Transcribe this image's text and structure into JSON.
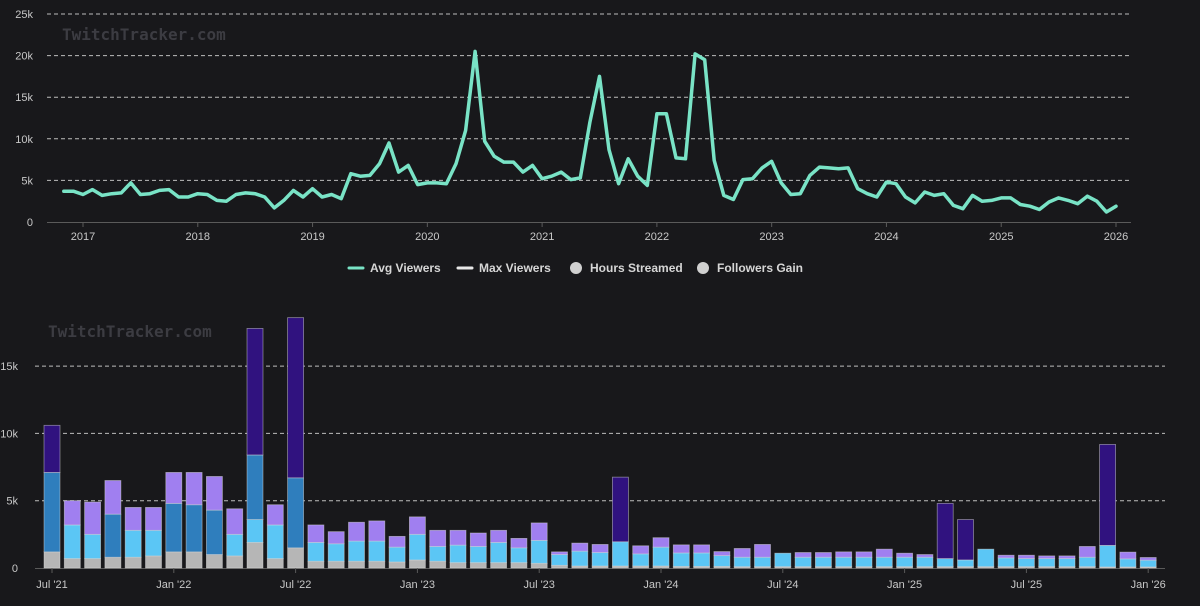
{
  "watermark": "TwitchTracker.com",
  "colors": {
    "background": "#18181b",
    "grid": "#bdbdbd",
    "avg_line": "#79e3c6",
    "max_line": "#e8e8e8",
    "hours_legend": "#d0d0d0",
    "followers_legend": "#d0d0d0",
    "stack_base": "#b6b6b6",
    "stack_light_blue": "#5bc6f5",
    "stack_mid_blue": "#2f7ebd",
    "stack_lilac": "#a07ff0",
    "stack_indigo": "#30127f"
  },
  "chart_data": [
    {
      "type": "line",
      "title": "",
      "xlabel": "",
      "ylabel": "",
      "ylim": [
        0,
        25000
      ],
      "y_ticks": [
        "0",
        "5k",
        "10k",
        "15k",
        "20k",
        "25k"
      ],
      "x_ticks": [
        "2017",
        "2018",
        "2019",
        "2020",
        "2021",
        "2022",
        "2023",
        "2024",
        "2025",
        "2026"
      ],
      "x_start": 2016.833,
      "x_step": 0.0833333,
      "series": [
        {
          "name": "Avg Viewers",
          "values": [
            3700,
            3700,
            3300,
            3900,
            3200,
            3400,
            3500,
            4700,
            3300,
            3400,
            3800,
            3900,
            3000,
            3000,
            3400,
            3300,
            2600,
            2500,
            3300,
            3500,
            3400,
            3000,
            1700,
            2600,
            3800,
            3000,
            4000,
            3000,
            3300,
            2800,
            5800,
            5500,
            5600,
            7000,
            9500,
            6000,
            6800,
            4500,
            4700,
            4700,
            4600,
            7000,
            11000,
            20500,
            9700,
            7900,
            7200,
            7200,
            6000,
            6800,
            5200,
            5500,
            6000,
            5100,
            5300,
            12000,
            17500,
            8700,
            4600,
            7600,
            5500,
            4400,
            13000,
            13000,
            7700,
            7600,
            20200,
            19500,
            7400,
            3200,
            2700,
            5100,
            5200,
            6500,
            7300,
            4700,
            3300,
            3400,
            5600,
            6600,
            6500,
            6400,
            6500,
            4000,
            3400,
            3000,
            4800,
            4600,
            3000,
            2300,
            3600,
            3200,
            3400,
            2000,
            1600,
            3200,
            2500,
            2600,
            2900,
            2900,
            2100,
            1900,
            1500,
            2400,
            2900,
            2600,
            2200,
            3100,
            2500,
            1200,
            1900
          ]
        },
        {
          "name": "Max Viewers",
          "values": []
        }
      ],
      "legend": [
        "Avg Viewers",
        "Max Viewers",
        "Hours Streamed",
        "Followers Gain"
      ],
      "legend_placement": "bottom-center"
    },
    {
      "type": "bar",
      "stacked": true,
      "title": "",
      "xlabel": "",
      "ylabel": "",
      "ylim": [
        0,
        18000
      ],
      "y_ticks": [
        "0",
        "5k",
        "10k",
        "15k"
      ],
      "x_tick_labels": [
        "Jul '21",
        "Jan '22",
        "Jul '22",
        "Jan '23",
        "Jul '23",
        "Jan '24",
        "Jul '24",
        "Jan '25",
        "Jul '25",
        "Jan '26"
      ],
      "x_tick_indices": [
        0,
        6,
        12,
        18,
        24,
        30,
        36,
        42,
        48,
        54
      ],
      "categories_count": 55,
      "series": [
        {
          "name": "base",
          "color": "#b6b6b6",
          "values": [
            1200,
            700,
            700,
            800,
            800,
            900,
            1200,
            1200,
            1000,
            900,
            1900,
            700,
            1500,
            500,
            500,
            500,
            500,
            450,
            600,
            500,
            400,
            400,
            400,
            400,
            350,
            200,
            150,
            150,
            150,
            150,
            150,
            120,
            120,
            120,
            100,
            100,
            100,
            100,
            100,
            100,
            100,
            100,
            100,
            100,
            100,
            100,
            100,
            100,
            100,
            100,
            100,
            100,
            80,
            80,
            80
          ]
        },
        {
          "name": "light-blue",
          "color": "#5bc6f5",
          "values": [
            0,
            2500,
            1800,
            0,
            2000,
            1900,
            0,
            0,
            0,
            1600,
            1700,
            2500,
            0,
            1400,
            1300,
            1500,
            1500,
            1100,
            1900,
            1100,
            1300,
            1200,
            1500,
            1100,
            1700,
            800,
            1100,
            1000,
            1800,
            900,
            1400,
            1000,
            1000,
            800,
            700,
            700,
            1000,
            700,
            700,
            700,
            700,
            700,
            700,
            700,
            600,
            500,
            1300,
            650,
            600,
            600,
            600,
            700,
            1600,
            600,
            500
          ]
        },
        {
          "name": "mid-blue",
          "color": "#2f7ebd",
          "values": [
            5900,
            0,
            0,
            3200,
            0,
            0,
            3600,
            3500,
            3300,
            0,
            4800,
            0,
            5200,
            0,
            0,
            0,
            0,
            0,
            0,
            0,
            0,
            0,
            0,
            0,
            0,
            0,
            0,
            0,
            0,
            0,
            0,
            0,
            0,
            0,
            0,
            0,
            0,
            0,
            0,
            0,
            0,
            0,
            0,
            0,
            0,
            0,
            0,
            0,
            0,
            0,
            0,
            0,
            0,
            0,
            0
          ]
        },
        {
          "name": "lilac",
          "color": "#a07ff0",
          "values": [
            0,
            1800,
            2400,
            2500,
            1700,
            1700,
            2300,
            2400,
            2500,
            1900,
            0,
            1500,
            0,
            1300,
            900,
            1400,
            1500,
            800,
            1300,
            1200,
            1100,
            1000,
            900,
            700,
            1300,
            200,
            600,
            600,
            0,
            600,
            700,
            600,
            600,
            300,
            650,
            950,
            0,
            350,
            350,
            400,
            400,
            600,
            300,
            200,
            0,
            0,
            0,
            200,
            250,
            200,
            200,
            800,
            0,
            500,
            200
          ]
        },
        {
          "name": "indigo",
          "color": "#30127f",
          "values": [
            3500,
            0,
            0,
            0,
            0,
            0,
            0,
            0,
            0,
            0,
            9400,
            0,
            11900,
            0,
            0,
            0,
            0,
            0,
            0,
            0,
            0,
            0,
            0,
            0,
            0,
            0,
            0,
            0,
            4800,
            0,
            0,
            0,
            0,
            0,
            0,
            0,
            0,
            0,
            0,
            0,
            0,
            0,
            0,
            0,
            4100,
            3000,
            0,
            0,
            0,
            0,
            0,
            0,
            7500,
            0,
            0
          ]
        }
      ]
    }
  ]
}
